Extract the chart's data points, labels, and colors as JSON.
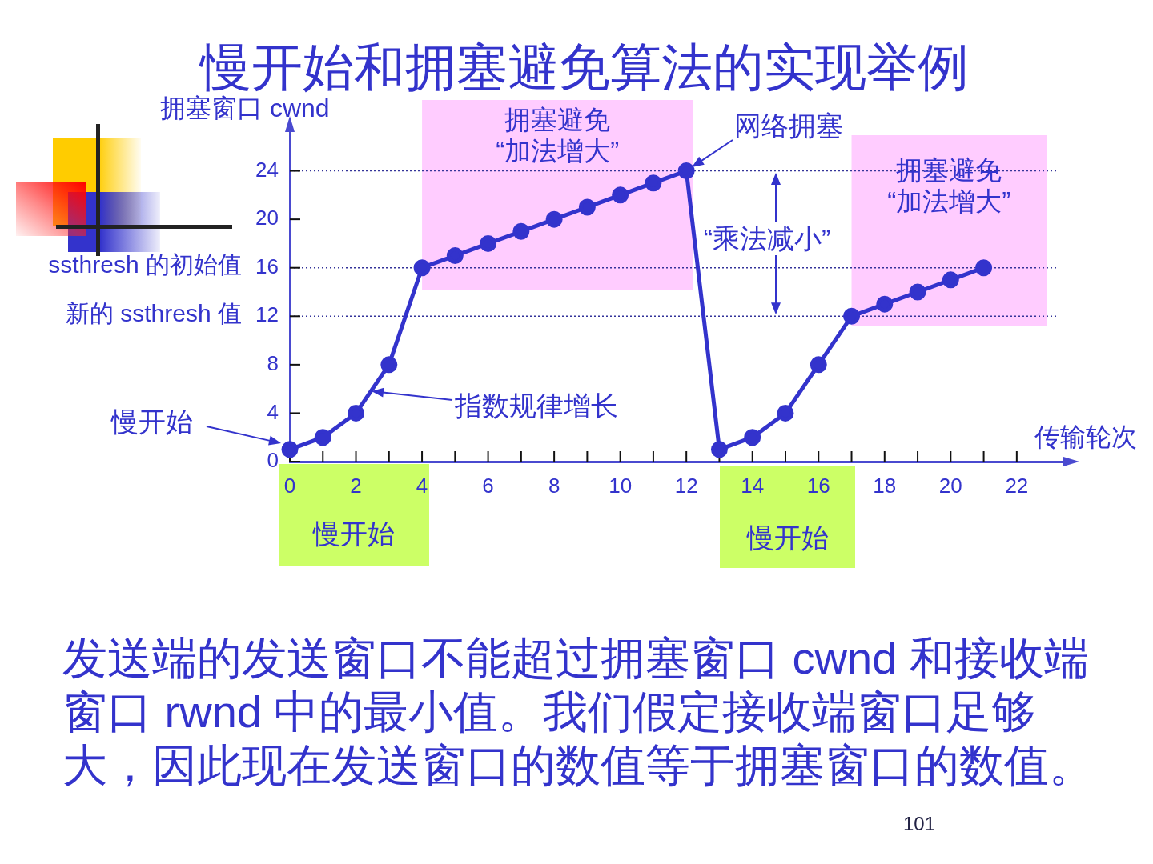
{
  "chart_data": {
    "type": "line",
    "title": "慢开始和拥塞避免算法的实现举例",
    "xlabel": "传输轮次",
    "ylabel": "拥塞窗口 cwnd",
    "x": [
      0,
      1,
      2,
      3,
      4,
      5,
      6,
      7,
      8,
      9,
      10,
      11,
      12,
      13,
      14,
      15,
      16,
      17,
      18,
      19,
      20,
      21
    ],
    "series": [
      {
        "color": "#3333cc",
        "values": [
          1,
          2,
          4,
          8,
          16,
          17,
          18,
          19,
          20,
          21,
          22,
          23,
          24,
          1,
          2,
          4,
          8,
          12,
          13,
          14,
          15,
          16
        ]
      }
    ],
    "xlim": [
      0,
      23.7
    ],
    "xticks": [
      0,
      {
        "value": 1,
        "label": null
      },
      2,
      {
        "value": 3,
        "label": null
      },
      4,
      {
        "value": 5,
        "label": null
      },
      6,
      {
        "value": 7,
        "label": null
      },
      8,
      {
        "value": 9,
        "label": null
      },
      10,
      {
        "value": 11,
        "label": null
      },
      12,
      {
        "value": 13,
        "label": null
      },
      14,
      {
        "value": 15,
        "label": null
      },
      16,
      {
        "value": 17,
        "label": null
      },
      18,
      {
        "value": 19,
        "label": null
      },
      20,
      {
        "value": 21,
        "label": null
      },
      22
    ],
    "ylim": [
      0,
      28
    ],
    "yticks": [
      0,
      4,
      8,
      12,
      16,
      20,
      24
    ],
    "marker": "circle",
    "line_style": "solid",
    "ref_lines": [
      {
        "axis": "y",
        "value": 24,
        "color": "#333399",
        "line_style": "dotted"
      },
      {
        "axis": "y",
        "value": 16,
        "label": "ssthresh 的初始值",
        "color": "#333399",
        "line_style": "dotted"
      },
      {
        "axis": "y",
        "value": 12,
        "label": "新的 ssthresh 值",
        "color": "#333399",
        "line_style": "dotted"
      }
    ],
    "bands": [
      {
        "axis": "x",
        "from": 4,
        "to": 12.2,
        "label": "拥塞避免\n“加法增大”",
        "color": "#ffccff"
      },
      {
        "axis": "x",
        "from": 17,
        "to": 22.9,
        "label": "拥塞避免\n“加法增大”",
        "color": "#ffccff"
      }
    ],
    "annotations": [
      {
        "text": "网络拥塞",
        "x": 12,
        "y": 24
      },
      "指数规律增长",
      "慢开始",
      "“乘法减小”",
      "慢开始",
      "慢开始",
      "发送端的发送窗口不能超过拥塞窗口 cwnd 和接收端窗口 rwnd 中的最小值。我们假定接收端窗口足够大，因此现在发送窗口的数值等于拥塞窗口的数值。",
      "101"
    ]
  }
}
